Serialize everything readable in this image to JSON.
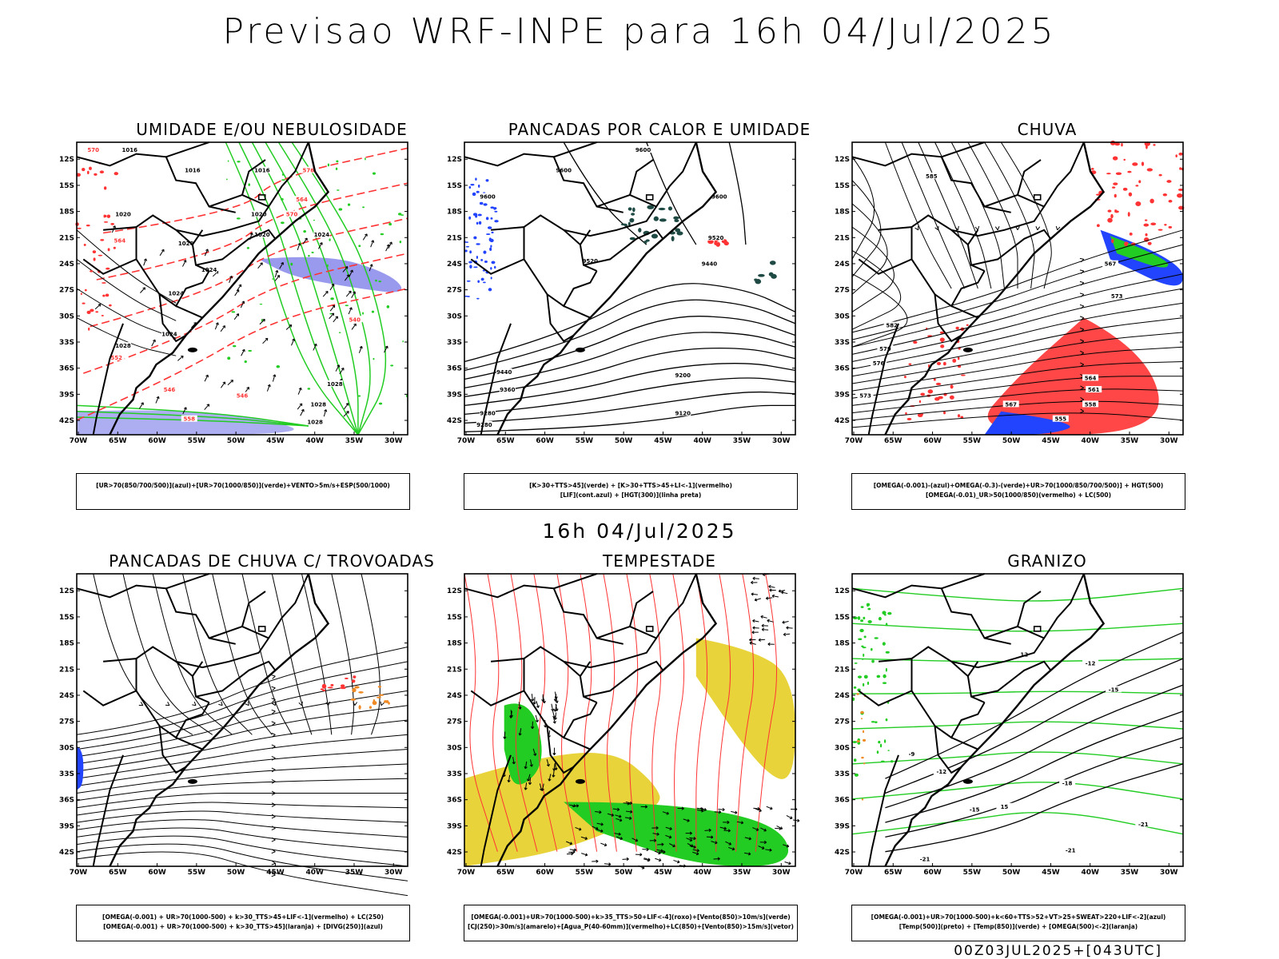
{
  "title": "Previsao WRF-INPE  para 16h 04/Jul/2025",
  "mid_title": "16h 04/Jul/2025",
  "footer": "00Z03JUL2025+[043UTC]",
  "axes": {
    "lat_ticks": [
      "12S",
      "15S",
      "18S",
      "21S",
      "24S",
      "27S",
      "30S",
      "33S",
      "36S",
      "39S",
      "42S"
    ],
    "lon_ticks": [
      "70W",
      "65W",
      "60W",
      "55W",
      "50W",
      "45W",
      "40W",
      "35W",
      "30W"
    ]
  },
  "colors": {
    "green": "#22cc22",
    "red": "#ff3333",
    "blue": "#2244ff",
    "lavender": "#9999ee",
    "yellow": "#e8d43a",
    "orange": "#f08a24",
    "darkteal": "#1f4a44",
    "black": "#000000"
  },
  "panels": [
    {
      "title": "UMIDADE E/OU NEBULOSIDADE",
      "legend": [
        "[UR>70(850/700/500)](azul)+[UR>70(1000/850)](verde)+VENTO>5m/s+ESP(500/1000)"
      ],
      "contour_labels": [
        "1016",
        "1016",
        "1016",
        "1020",
        "1020",
        "1020",
        "1020",
        "1024",
        "1024",
        "1024",
        "1024",
        "1028",
        "1028",
        "1028",
        "1028"
      ],
      "red_labels": [
        "570",
        "576",
        "564",
        "552",
        "546",
        "546",
        "540",
        "558",
        "570",
        "564"
      ]
    },
    {
      "title": "PANCADAS POR CALOR E UMIDADE",
      "legend": [
        "[K>30+TTS>45](verde) + [K>30+TTS>45+LI<-1](vermelho)",
        "[LIF](cont.azul) + [HGT(300)](linha preta)"
      ],
      "contour_labels": [
        "9600",
        "9600",
        "9600",
        "9600",
        "9520",
        "9520",
        "9440",
        "9440",
        "9360",
        "9280",
        "9280",
        "9200",
        "9120"
      ]
    },
    {
      "title": "CHUVA",
      "legend": [
        "[OMEGA(-0.001)-(azul)+OMEGA(-0.3)-(verde)+UR>70(1000/850/700/500)] + HGT(500)",
        "[OMEGA(-0.01)_UR>50(1000/850)(vermelho) + LC(500)"
      ],
      "contour_labels": [
        "585",
        "582",
        "579",
        "576",
        "573",
        "567",
        "564",
        "561",
        "558",
        "555",
        "567",
        "573"
      ]
    },
    {
      "title": "PANCADAS DE CHUVA C/ TROVOADAS",
      "legend": [
        "[OMEGA(-0.001) + UR>70(1000-500) + k>30_TTS>45+LIF<-1](vermelho) + LC(250)",
        "[OMEGA(-0.001) + UR>70(1000-500) + k>30_TTS>45](laranja) + [DIVG(250)](azul)"
      ]
    },
    {
      "title": "TEMPESTADE",
      "legend": [
        "[OMEGA(-0.001)+UR>70(1000-500)+k>35_TTS>50+LIF<-4](roxo)+[Vento(850)>10m/s](verde)",
        "[CJ(250)>30m/s](amarelo)+[Agua_P(40-60mm)](vermelho)+LC(850)+[Vento(850)>15m/s](vetor)"
      ]
    },
    {
      "title": "GRANIZO",
      "legend": [
        "[OMEGA(-0.001)+UR>70(1000-500)+k<60+TTS>52+VT>25+SWEAT>220+LIF<-2](azul)",
        "[Temp(500)](preto) + [Temp(850)](verde) + [OMEGA(500)<-2](laranja)"
      ],
      "contour_labels": [
        "-12",
        "-15",
        "-9",
        "-12",
        "-15",
        "-18",
        "-21",
        "-21",
        "-21",
        "12",
        "15"
      ]
    }
  ]
}
